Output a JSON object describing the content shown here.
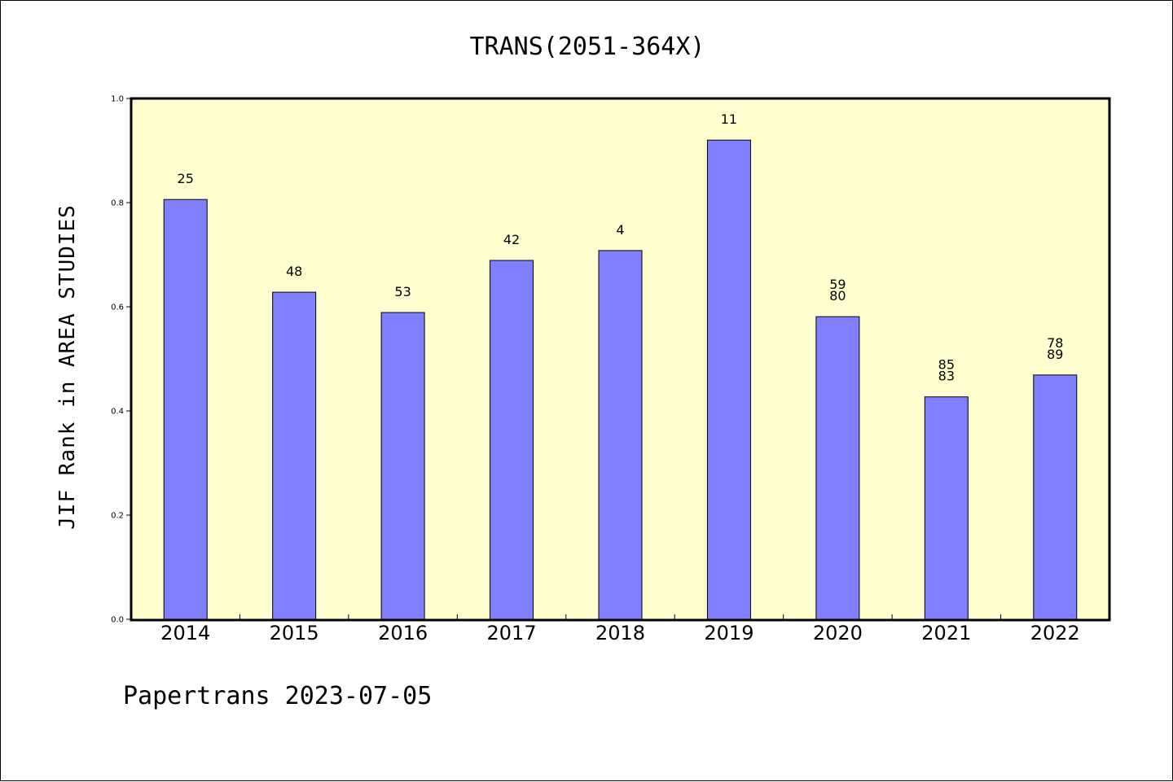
{
  "chart_data": {
    "type": "bar",
    "title": "TRANS(2051-364X)",
    "xlabel": "",
    "ylabel": "JIF Rank in AREA STUDIES",
    "ylim": [
      0,
      1.0
    ],
    "yticks": [
      "0.0",
      "0.2",
      "0.4",
      "0.6",
      "0.8",
      "1.0"
    ],
    "categories": [
      "2014",
      "2015",
      "2016",
      "2017",
      "2018",
      "2019",
      "2020",
      "2021",
      "2022"
    ],
    "values": [
      0.806,
      0.628,
      0.589,
      0.689,
      0.708,
      0.92,
      0.581,
      0.427,
      0.469
    ],
    "data_labels": [
      [
        "25"
      ],
      [
        "48"
      ],
      [
        "53"
      ],
      [
        "42"
      ],
      [
        "4"
      ],
      [
        "11"
      ],
      [
        "59",
        "80"
      ],
      [
        "85",
        "83"
      ],
      [
        "78",
        "89"
      ]
    ],
    "grid": false,
    "background_color": "#FFFFD0",
    "bar_color": "#8080FF"
  },
  "footer": "Papertrans 2023-07-05"
}
